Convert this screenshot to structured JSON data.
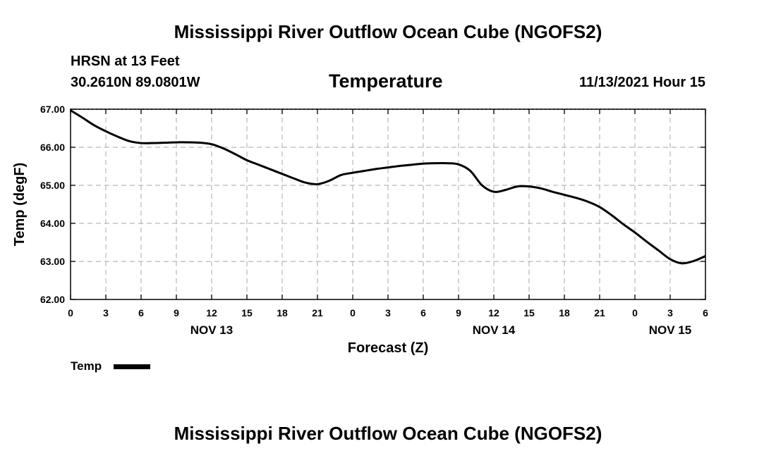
{
  "header": {
    "main_title": "Mississippi River Outflow Ocean Cube (NGOFS2)",
    "station_line": "HRSN at 13 Feet",
    "coords_line": "30.2610N  89.0801W",
    "panel_title": "Temperature",
    "datetime": "11/13/2021 Hour 15"
  },
  "footer": {
    "main_title": "Mississippi River Outflow Ocean Cube (NGOFS2)"
  },
  "chart_data": {
    "type": "line",
    "title": "Temperature",
    "xlabel": "Forecast (Z)",
    "ylabel": "Temp (degF)",
    "xlim": [
      0,
      54
    ],
    "ylim": [
      62.0,
      67.0
    ],
    "grid": true,
    "y_ticks": [
      62.0,
      63.0,
      64.0,
      65.0,
      66.0,
      67.0
    ],
    "y_tick_labels": [
      "62.00",
      "63.00",
      "64.00",
      "65.00",
      "66.00",
      "67.00"
    ],
    "x_ticks": [
      0,
      3,
      6,
      9,
      12,
      15,
      18,
      21,
      24,
      27,
      30,
      33,
      36,
      39,
      42,
      45,
      48,
      51,
      54
    ],
    "x_tick_labels": [
      "0",
      "3",
      "6",
      "9",
      "12",
      "15",
      "18",
      "21",
      "0",
      "3",
      "6",
      "9",
      "12",
      "15",
      "18",
      "21",
      "0",
      "3",
      "6"
    ],
    "day_labels": [
      {
        "hour": 12,
        "label": "NOV 13"
      },
      {
        "hour": 36,
        "label": "NOV 14"
      },
      {
        "hour": 51,
        "label": "NOV 15"
      }
    ],
    "legend": {
      "label": "Temp",
      "placement": "bottom-left"
    },
    "series": [
      {
        "name": "Temp",
        "color": "#000000",
        "x": [
          0,
          1,
          2,
          3,
          4,
          5,
          6,
          7,
          8,
          9,
          10,
          11,
          12,
          13,
          14,
          15,
          16,
          17,
          18,
          19,
          20,
          21,
          22,
          23,
          24,
          25,
          26,
          27,
          28,
          29,
          30,
          31,
          32,
          33,
          34,
          35,
          36,
          37,
          38,
          39,
          40,
          41,
          42,
          43,
          44,
          45,
          46,
          47,
          48,
          49,
          50,
          51,
          52,
          53,
          54
        ],
        "values": [
          66.97,
          66.78,
          66.58,
          66.42,
          66.28,
          66.16,
          66.11,
          66.11,
          66.12,
          66.13,
          66.13,
          66.12,
          66.08,
          65.97,
          65.82,
          65.66,
          65.54,
          65.42,
          65.3,
          65.18,
          65.07,
          65.03,
          65.12,
          65.27,
          65.33,
          65.38,
          65.43,
          65.47,
          65.51,
          65.54,
          65.57,
          65.58,
          65.58,
          65.55,
          65.38,
          65.0,
          64.83,
          64.88,
          64.97,
          64.97,
          64.92,
          64.83,
          64.75,
          64.67,
          64.57,
          64.43,
          64.22,
          63.98,
          63.76,
          63.52,
          63.29,
          63.06,
          62.95,
          63.01,
          63.14
        ]
      }
    ]
  }
}
